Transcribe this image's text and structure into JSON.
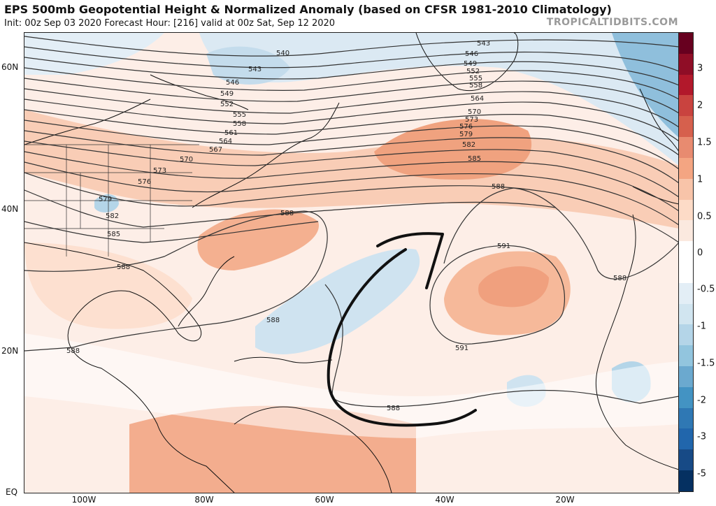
{
  "title": "EPS 500mb Geopotential Height & Normalized Anomaly (based on CFSR 1981-2010 Climatology)",
  "subtitle": "Init: 00z Sep 03 2020   Forecast Hour: [216]   valid at 00z Sat, Sep 12 2020",
  "brand": "TROPICALTIDBITS.COM",
  "lat_labels": [
    "60N",
    "40N",
    "20N",
    "EQ"
  ],
  "lon_labels": [
    "100W",
    "80W",
    "60W",
    "40W",
    "20W"
  ],
  "colorbar": {
    "labels": [
      "3",
      "2",
      "1.5",
      "1",
      "0.5",
      "0",
      "-0.5",
      "-1",
      "-1.5",
      "-2",
      "-3",
      "-5"
    ],
    "colors": [
      "#67001f",
      "#8f0d26",
      "#b2182b",
      "#c9433f",
      "#d6604d",
      "#e88b70",
      "#f4a582",
      "#f8c4a9",
      "#fddbc7",
      "#fbe9df",
      "#ffffff",
      "#ffffff",
      "#e3eef6",
      "#d1e5f0",
      "#b4d5e8",
      "#92c5de",
      "#6ba9cf",
      "#4393c3",
      "#2f78b4",
      "#2166ac",
      "#174a86",
      "#053061"
    ]
  },
  "contour_labels": {
    "c540": "540",
    "c543a": "543",
    "c543b": "543",
    "c546a": "546",
    "c546b": "546",
    "c549a": "549",
    "c549b": "549",
    "c552a": "552",
    "c552b": "552",
    "c555a": "555",
    "c555b": "555",
    "c558a": "558",
    "c558b": "558",
    "c561": "561",
    "c564a": "564",
    "c564b": "564",
    "c567": "567",
    "c570a": "570",
    "c570b": "570",
    "c573a": "573",
    "c573b": "573",
    "c576a": "576",
    "c576b": "576",
    "c579a": "579",
    "c579b": "579",
    "c582a": "582",
    "c582b": "582",
    "c585a": "585",
    "c585b": "585",
    "c588a": "588",
    "c588b": "588",
    "c588c": "588",
    "c588d": "588",
    "c588e": "588",
    "c588f": "588",
    "c588g": "588",
    "c591a": "591",
    "c591b": "591"
  }
}
